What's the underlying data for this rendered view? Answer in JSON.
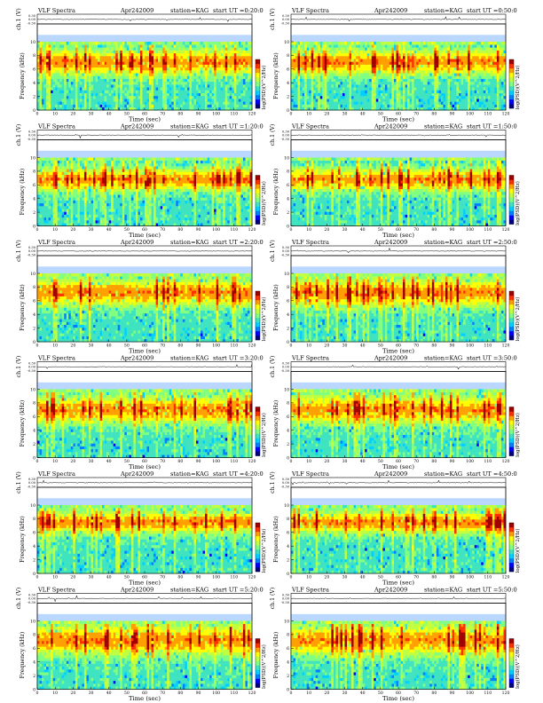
{
  "page_title_prefix": "VLF Spectra",
  "date": "Apr242009",
  "station_text": "station=KAG",
  "start_prefix": "start  UT",
  "ch_label": "ch.1 (V)",
  "freq_label": "Frequency  (kHz)",
  "xlabel": "Time  (sec)",
  "cbar_label": "log(PSD)(V^2/Hz)",
  "colors": {
    "colormap": [
      "#00007f",
      "#0000ff",
      "#0080ff",
      "#00d0ff",
      "#3fe3c0",
      "#80ff80",
      "#c0ff40",
      "#ffff00",
      "#ffa000",
      "#ff3000",
      "#a00000"
    ],
    "waveform": "#000000"
  },
  "chart_data": [
    {
      "type": "heatmap",
      "start_ut": "=0:20:0",
      "x_ticks": [
        "0",
        "10",
        "20",
        "30",
        "40",
        "50",
        "60",
        "70",
        "80",
        "90",
        "100",
        "110",
        "120"
      ],
      "y_ticks": [
        "0",
        "2",
        "4",
        "6",
        "8",
        "10"
      ],
      "wave_ticks": [
        "0.30",
        "0.00",
        "-0.30"
      ],
      "xlim": [
        0,
        120
      ],
      "ylim": [
        0,
        10
      ],
      "band_center_khz": 7.0,
      "band_width_khz": 1.8
    },
    {
      "type": "heatmap",
      "start_ut": "=0:50:0",
      "x_ticks": [
        "0",
        "10",
        "20",
        "30",
        "40",
        "50",
        "60",
        "70",
        "80",
        "90",
        "100",
        "110",
        "120"
      ],
      "y_ticks": [
        "0",
        "2",
        "4",
        "6",
        "8",
        "10"
      ],
      "wave_ticks": [
        "0.30",
        "0.00",
        "-0.30"
      ],
      "xlim": [
        0,
        120
      ],
      "ylim": [
        0,
        10
      ],
      "band_center_khz": 7.0,
      "band_width_khz": 1.8
    },
    {
      "type": "heatmap",
      "start_ut": "=1:20:0",
      "x_ticks": [
        "0",
        "10",
        "20",
        "30",
        "40",
        "50",
        "60",
        "70",
        "80",
        "90",
        "100",
        "110",
        "120"
      ],
      "y_ticks": [
        "0",
        "2",
        "4",
        "6",
        "8",
        "10"
      ],
      "wave_ticks": [
        "0.30",
        "0.00",
        "-0.30"
      ],
      "xlim": [
        0,
        120
      ],
      "ylim": [
        0,
        10
      ],
      "band_center_khz": 6.8,
      "band_width_khz": 1.6
    },
    {
      "type": "heatmap",
      "start_ut": "=1:50:0",
      "x_ticks": [
        "0",
        "10",
        "20",
        "30",
        "40",
        "50",
        "60",
        "70",
        "80",
        "90",
        "100",
        "110",
        "120"
      ],
      "y_ticks": [
        "0",
        "2",
        "4",
        "6",
        "8",
        "10"
      ],
      "wave_ticks": [
        "0.30",
        "0.00",
        "-0.30"
      ],
      "xlim": [
        0,
        120
      ],
      "ylim": [
        0,
        10
      ],
      "band_center_khz": 6.8,
      "band_width_khz": 1.6
    },
    {
      "type": "heatmap",
      "start_ut": "=2:20:0",
      "x_ticks": [
        "0",
        "10",
        "20",
        "30",
        "40",
        "50",
        "60",
        "70",
        "80",
        "90",
        "100",
        "110",
        "120"
      ],
      "y_ticks": [
        "0",
        "2",
        "4",
        "6",
        "8",
        "10"
      ],
      "wave_ticks": [
        "0.30",
        "0.00",
        "-0.30"
      ],
      "xlim": [
        0,
        120
      ],
      "ylim": [
        0,
        10
      ],
      "band_center_khz": 7.2,
      "band_width_khz": 2.0
    },
    {
      "type": "heatmap",
      "start_ut": "=2:50:0",
      "x_ticks": [
        "0",
        "10",
        "20",
        "30",
        "40",
        "50",
        "60",
        "70",
        "80",
        "90",
        "100",
        "110",
        "120"
      ],
      "y_ticks": [
        "0",
        "2",
        "4",
        "6",
        "8",
        "10"
      ],
      "wave_ticks": [
        "0.30",
        "0.00",
        "-0.30"
      ],
      "xlim": [
        0,
        120
      ],
      "ylim": [
        0,
        10
      ],
      "band_center_khz": 7.2,
      "band_width_khz": 2.0
    },
    {
      "type": "heatmap",
      "start_ut": "=3:20:0",
      "x_ticks": [
        "0",
        "10",
        "20",
        "30",
        "40",
        "50",
        "60",
        "70",
        "80",
        "90",
        "100",
        "110",
        "120"
      ],
      "y_ticks": [
        "0",
        "2",
        "4",
        "6",
        "8",
        "10"
      ],
      "wave_ticks": [
        "0.30",
        "0.00",
        "-0.30"
      ],
      "xlim": [
        0,
        120
      ],
      "ylim": [
        0,
        10
      ],
      "band_center_khz": 7.0,
      "band_width_khz": 2.0
    },
    {
      "type": "heatmap",
      "start_ut": "=3:50:0",
      "x_ticks": [
        "0",
        "10",
        "20",
        "30",
        "40",
        "50",
        "60",
        "70",
        "80",
        "90",
        "100",
        "110",
        "120"
      ],
      "y_ticks": [
        "0",
        "2",
        "4",
        "6",
        "8",
        "10"
      ],
      "wave_ticks": [
        "0.30",
        "0.00",
        "-0.30"
      ],
      "xlim": [
        0,
        120
      ],
      "ylim": [
        0,
        10
      ],
      "band_center_khz": 7.0,
      "band_width_khz": 2.0
    },
    {
      "type": "heatmap",
      "start_ut": "=4:20:0",
      "x_ticks": [
        "0",
        "10",
        "20",
        "30",
        "40",
        "50",
        "60",
        "70",
        "80",
        "90",
        "100",
        "110",
        "120"
      ],
      "y_ticks": [
        "0",
        "2",
        "4",
        "6",
        "8",
        "10"
      ],
      "wave_ticks": [
        "0.30",
        "0.00",
        "-0.30"
      ],
      "xlim": [
        0,
        120
      ],
      "ylim": [
        0,
        10
      ],
      "band_center_khz": 7.5,
      "band_width_khz": 1.6
    },
    {
      "type": "heatmap",
      "start_ut": "=4:50:0",
      "x_ticks": [
        "0",
        "10",
        "20",
        "30",
        "40",
        "50",
        "60",
        "70",
        "80",
        "90",
        "100",
        "110",
        "120"
      ],
      "y_ticks": [
        "0",
        "2",
        "4",
        "6",
        "8",
        "10"
      ],
      "wave_ticks": [
        "0.30",
        "0.00",
        "-0.30"
      ],
      "xlim": [
        0,
        120
      ],
      "ylim": [
        0,
        10
      ],
      "band_center_khz": 7.5,
      "band_width_khz": 1.6
    },
    {
      "type": "heatmap",
      "start_ut": "=5:20:0",
      "x_ticks": [
        "0",
        "10",
        "20",
        "30",
        "40",
        "50",
        "60",
        "70",
        "80",
        "90",
        "100",
        "110",
        "120"
      ],
      "y_ticks": [
        "0",
        "2",
        "4",
        "6",
        "8",
        "10"
      ],
      "wave_ticks": [
        "0.30",
        "0.00",
        "-0.30"
      ],
      "xlim": [
        0,
        120
      ],
      "ylim": [
        0,
        10
      ],
      "band_center_khz": 7.2,
      "band_width_khz": 2.2
    },
    {
      "type": "heatmap",
      "start_ut": "=5:50:0",
      "x_ticks": [
        "0",
        "10",
        "20",
        "30",
        "40",
        "50",
        "60",
        "70",
        "80",
        "90",
        "100",
        "110",
        "120"
      ],
      "y_ticks": [
        "0",
        "2",
        "4",
        "6",
        "8",
        "10"
      ],
      "wave_ticks": [
        "0.30",
        "0.00",
        "-0.30"
      ],
      "xlim": [
        0,
        120
      ],
      "ylim": [
        0,
        10
      ],
      "band_center_khz": 7.2,
      "band_width_khz": 2.2
    }
  ]
}
